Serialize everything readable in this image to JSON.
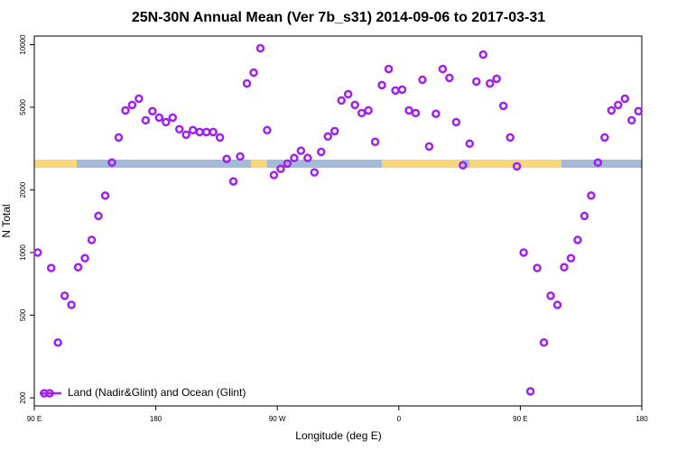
{
  "chart_data": {
    "type": "scatter",
    "title": "25N-30N Annual Mean (Ver 7b_s31)   2014-09-06 to 2017-03-31",
    "x_label": "Longitude (deg E)",
    "y_label": "N Total",
    "log_y": true,
    "legend": "bottomleft",
    "xlim": [
      90,
      540
    ],
    "xticks": [
      {
        "value": 90,
        "label": "90 E"
      },
      {
        "value": 180,
        "label": "180"
      },
      {
        "value": 270,
        "label": "90 W"
      },
      {
        "value": 360,
        "label": "0"
      },
      {
        "value": 450,
        "label": "90 E"
      },
      {
        "value": 540,
        "label": "180"
      }
    ],
    "ylim": [
      183,
      11000
    ],
    "yticks": [
      200,
      500,
      1000,
      2000,
      5000,
      10000
    ],
    "series": [
      {
        "name": "Land (Nadir&Glint) and Ocean (Glint)",
        "color": "#a020f0",
        "x": [
          92.5,
          102.5,
          107.5,
          112.5,
          117.5,
          122.5,
          127.5,
          132.5,
          137.5,
          142.5,
          147.5,
          152.5,
          157.5,
          162.5,
          167.5,
          172.5,
          177.5,
          182.5,
          187.5,
          192.5,
          197.5,
          202.5,
          207.5,
          212.5,
          217.5,
          222.5,
          227.5,
          232.5,
          237.5,
          242.5,
          247.5,
          252.5,
          257.5,
          262.5,
          267.5,
          272.5,
          277.5,
          282.5,
          287.5,
          292.5,
          297.5,
          302.5,
          307.5,
          312.5,
          317.5,
          322.5,
          327.5,
          332.5,
          337.5,
          342.5,
          347.5,
          352.5,
          357.5,
          362.5,
          367.5,
          372.5,
          377.5,
          382.5,
          387.5,
          392.5,
          397.5,
          402.5,
          407.5,
          412.5,
          417.5,
          422.5,
          427.5,
          432.5,
          437.5,
          442.5,
          447.5,
          452.5,
          457.5,
          462.5,
          467.5,
          472.5,
          477.5,
          482.5,
          487.5,
          492.5,
          497.5,
          502.5,
          507.5,
          512.5,
          517.5,
          522.5,
          527.5,
          532.5,
          537.5
        ],
        "values": [
          1000,
          843,
          369,
          620,
          560,
          850,
          940,
          1150,
          1500,
          1880,
          2710,
          3580,
          4830,
          5130,
          5500,
          4330,
          4790,
          4460,
          4240,
          4460,
          3920,
          3690,
          3880,
          3800,
          3800,
          3800,
          3580,
          2820,
          2200,
          2900,
          6510,
          7340,
          9610,
          3880,
          2360,
          2530,
          2680,
          2850,
          3090,
          2850,
          2430,
          3050,
          3620,
          3840,
          5390,
          5780,
          5130,
          4690,
          4830,
          3410,
          6390,
          7640,
          6020,
          6080,
          4830,
          4690,
          6780,
          3240,
          4650,
          7640,
          6920,
          4240,
          2630,
          3340,
          6650,
          8960,
          6510,
          6850,
          5080,
          3580,
          2600,
          1000,
          215,
          843,
          369,
          620,
          560,
          850,
          940,
          1150,
          1500,
          1880,
          2710,
          3580,
          4830,
          5130,
          5500,
          4330,
          4790
        ]
      }
    ]
  }
}
